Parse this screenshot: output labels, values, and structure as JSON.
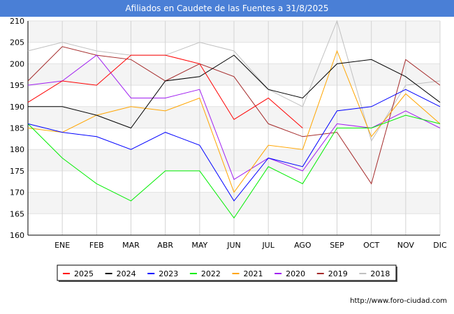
{
  "header": {
    "title": "Afiliados en Caudete de las Fuentes a 31/8/2025"
  },
  "footer": {
    "url": "http://www.foro-ciudad.com"
  },
  "chart_data": {
    "type": "line",
    "title": "Afiliados en Caudete de las Fuentes a 31/8/2025",
    "xlabel": "",
    "ylabel": "",
    "ylim": [
      160,
      210
    ],
    "yticks": [
      160,
      165,
      170,
      175,
      180,
      185,
      190,
      195,
      200,
      205,
      210
    ],
    "categories": [
      "",
      "ENE",
      "FEB",
      "MAR",
      "ABR",
      "MAY",
      "JUN",
      "JUL",
      "AGO",
      "SEP",
      "OCT",
      "NOV",
      "DIC"
    ],
    "grid": true,
    "legend_position": "bottom",
    "series": [
      {
        "name": "2025",
        "color": "#ff0000",
        "values": [
          191,
          196,
          195,
          202,
          202,
          200,
          187,
          192,
          185,
          null,
          null,
          null,
          null
        ]
      },
      {
        "name": "2024",
        "color": "#000000",
        "values": [
          190,
          190,
          188,
          185,
          196,
          197,
          202,
          194,
          192,
          200,
          201,
          197,
          191
        ]
      },
      {
        "name": "2023",
        "color": "#0000ff",
        "values": [
          186,
          184,
          183,
          180,
          184,
          181,
          168,
          178,
          176,
          189,
          190,
          194,
          190
        ]
      },
      {
        "name": "2022",
        "color": "#00ee00",
        "values": [
          186,
          178,
          172,
          168,
          175,
          175,
          164,
          176,
          172,
          185,
          185,
          188,
          186
        ]
      },
      {
        "name": "2021",
        "color": "#ffa500",
        "values": [
          185,
          184,
          188,
          190,
          189,
          192,
          170,
          181,
          180,
          203,
          183,
          193,
          186
        ]
      },
      {
        "name": "2020",
        "color": "#a020f0",
        "values": [
          195,
          196,
          202,
          192,
          192,
          194,
          173,
          178,
          175,
          186,
          185,
          189,
          185
        ]
      },
      {
        "name": "2019",
        "color": "#a52a2a",
        "values": [
          196,
          204,
          202,
          201,
          196,
          200,
          197,
          186,
          183,
          184,
          172,
          201,
          195
        ]
      },
      {
        "name": "2018",
        "color": "#c0c0c0",
        "values": [
          203,
          205,
          203,
          202,
          202,
          205,
          203,
          194,
          190,
          210,
          182,
          195,
          196
        ]
      }
    ]
  }
}
